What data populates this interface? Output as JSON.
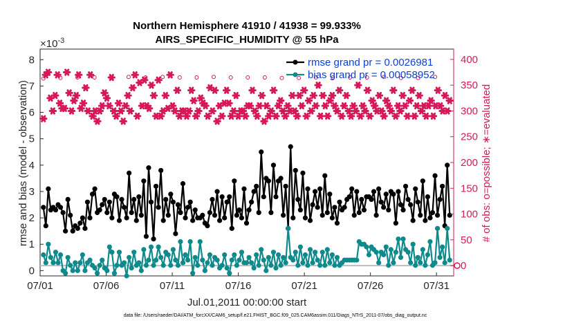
{
  "chart_data": {
    "type": "line",
    "title": "Northern Hemisphere 41910 / 41938 = 99.933%",
    "subtitle": "AIRS_SPECIFIC_HUMIDITY @ 55 hPa",
    "xlabel": "Jul.01,2011 00:00:00 start",
    "ylabel": "rmse and bias (model - observation)",
    "ylabel_right": "# of obs: o=possible; ∗=evaluated",
    "y_exponent_label": "×10",
    "y_exponent_value": "-3",
    "xlim": [
      0,
      31.3
    ],
    "ylim": [
      -0.2,
      8.4
    ],
    "ylim_right": [
      -20,
      420
    ],
    "x_ticks": [
      {
        "label": "07/01",
        "value": 0
      },
      {
        "label": "07/06",
        "value": 5
      },
      {
        "label": "07/11",
        "value": 10
      },
      {
        "label": "07/16",
        "value": 15
      },
      {
        "label": "07/21",
        "value": 20
      },
      {
        "label": "07/26",
        "value": 25
      },
      {
        "label": "07/31",
        "value": 30
      }
    ],
    "y_ticks": [
      "0",
      "1",
      "2",
      "3",
      "4",
      "5",
      "6",
      "7",
      "8"
    ],
    "y_ticks_right": [
      "0",
      "50",
      "100",
      "150",
      "200",
      "250",
      "300",
      "350",
      "400"
    ],
    "grid": false,
    "legend_position": "top-right",
    "series": [
      {
        "name": "rmse grand pr = 0.0026981",
        "color": "#000000",
        "axis": "left",
        "scale": 0.001,
        "values": [
          2.4,
          1.7,
          3.1,
          2.3,
          2.4,
          2.3,
          2.5,
          2.4,
          2.2,
          1.5,
          2.7,
          2.1,
          1.5,
          1.7,
          1.6,
          1.8,
          2.0,
          1.6,
          2.6,
          2.0,
          2.9,
          3.1,
          2.2,
          2.3,
          2.5,
          2.7,
          2.2,
          2.6,
          2.0,
          2.9,
          2.8,
          1.9,
          2.7,
          2.4,
          2.0,
          3.7,
          2.2,
          2.7,
          1.9,
          2.8,
          2.1,
          3.4,
          1.3,
          3.9,
          2.6,
          1.2,
          3.2,
          2.4,
          3.8,
          1.9,
          2.7,
          2.1,
          2.9,
          2.6,
          1.4,
          2.5,
          2.2,
          3.3,
          2.0,
          2.4,
          2.6,
          1.9,
          2.3,
          2.0,
          2.0,
          2.1,
          1.8,
          1.7,
          2.2,
          2.7,
          2.1,
          3.0,
          1.9,
          2.8,
          2.0,
          2.6,
          2.8,
          1.6,
          3.4,
          2.1,
          2.3,
          2.0,
          3.1,
          1.8,
          2.3,
          2.6,
          3.0,
          3.2,
          2.2,
          4.5,
          2.8,
          3.5,
          3.4,
          2.2,
          4.0,
          2.8,
          3.4,
          3.5,
          2.1,
          3.2,
          1.6,
          4.7,
          2.0,
          3.8,
          2.7,
          2.3,
          3.7,
          2.0,
          3.1,
          1.9,
          2.5,
          3.0,
          2.4,
          3.1,
          2.1,
          3.6,
          2.2,
          2.9,
          2.0,
          2.4,
          1.8,
          2.6,
          2.3,
          2.4,
          2.7,
          2.8,
          3.1,
          2.1,
          3.0,
          2.2,
          2.7,
          2.3,
          2.8,
          2.8,
          2.7,
          3.0,
          2.1,
          3.1,
          2.6,
          2.4,
          2.9,
          2.3,
          3.0,
          2.9,
          1.8,
          3.0,
          2.5,
          2.3,
          3.2,
          2.7,
          2.5,
          1.9,
          3.1,
          2.6,
          2.1,
          3.4,
          1.9,
          2.8,
          2.0,
          2.2,
          3.6,
          2.1,
          2.7,
          3.2,
          1.7,
          4.0,
          2.1
        ]
      },
      {
        "name": "bias grand pr = 0.00058952",
        "color": "#0e8a8c",
        "axis": "left",
        "scale": 0.001,
        "values": [
          0.6,
          0.3,
          1.0,
          0.5,
          0.3,
          0.7,
          0.3,
          0.6,
          0.0,
          -0.1,
          0.5,
          0.2,
          0.0,
          0.3,
          0.0,
          0.3,
          0.6,
          0.0,
          0.3,
          0.4,
          0.2,
          0.1,
          -0.1,
          0.2,
          0.4,
          0.1,
          0.0,
          0.9,
          0.7,
          -0.1,
          0.2,
          0.7,
          0.2,
          0.3,
          -0.2,
          0.5,
          0.1,
          0.7,
          0.2,
          0.3,
          0.0,
          0.8,
          0.2,
          0.4,
          0.9,
          0.2,
          0.4,
          0.9,
          0.5,
          0.2,
          0.7,
          0.6,
          0.2,
          0.8,
          0.4,
          0.2,
          1.1,
          0.3,
          0.6,
          0.4,
          1.1,
          -0.1,
          0.5,
          0.2,
          1.1,
          0.4,
          0.0,
          0.3,
          0.6,
          0.2,
          0.5,
          0.4,
          0.1,
          0.2,
          0.6,
          0.1,
          -0.1,
          0.4,
          0.6,
          0.2,
          0.4,
          0.7,
          0.3,
          0.3,
          0.5,
          0.3,
          0.1,
          0.6,
          0.2,
          0.8,
          0.4,
          0.0,
          0.5,
          0.2,
          0.7,
          0.1,
          0.6,
          0.2,
          0.5,
          0.3,
          1.6,
          0.5,
          0.4,
          0.7,
          0.2,
          0.9,
          0.3,
          0.6,
          0.2,
          0.8,
          0.3,
          0.7,
          0.4,
          0.2,
          0.7,
          0.2,
          0.8,
          0.3,
          0.6,
          0.2,
          0.5,
          0.2,
          0.3,
          0.4,
          0.4,
          0.4,
          0.4,
          0.4,
          0.4,
          1.1,
          1.0,
          1.0,
          0.9,
          0.6,
          0.9,
          0.8,
          0.7,
          0.3,
          0.7,
          0.6,
          0.9,
          0.2,
          0.8,
          0.3,
          0.7,
          1.2,
          0.5,
          1.2,
          0.8,
          0.7,
          0.3,
          1.0,
          0.2,
          0.5,
          0.3,
          0.8,
          0.2,
          0.6,
          1.1,
          0.2,
          0.3,
          1.6,
          0.5,
          0.9,
          0.3,
          1.6,
          0.4
        ]
      },
      {
        "name": "obs possible",
        "color": "#d6185a",
        "axis": "right",
        "values": [
          363,
          364,
          364,
          363,
          365,
          365,
          366,
          364,
          364,
          366,
          365,
          365,
          364,
          364,
          365,
          365,
          364,
          364,
          364,
          364,
          364,
          365,
          366,
          364,
          365,
          364,
          366,
          364,
          364,
          366,
          365,
          366,
          366,
          365,
          365,
          366,
          364,
          364,
          365,
          365,
          365,
          364,
          365,
          365,
          365,
          366,
          366,
          365,
          365,
          366,
          364,
          364,
          364,
          366,
          365,
          365,
          365,
          365,
          364,
          366,
          366,
          364,
          366,
          365,
          364,
          365,
          366,
          364,
          366,
          365,
          366,
          365,
          364,
          364,
          364,
          365,
          366,
          365,
          366,
          366,
          365,
          366,
          364,
          366,
          365,
          366,
          366,
          365,
          365,
          365,
          364,
          365,
          364,
          365,
          364,
          364,
          366,
          366,
          364,
          366,
          364,
          364,
          366,
          366,
          366,
          364,
          364,
          366,
          366,
          365,
          366,
          366,
          365,
          365,
          366,
          366,
          365,
          364,
          366,
          365,
          365,
          366,
          366,
          364,
          366,
          364,
          365,
          365,
          364,
          365,
          366,
          366,
          364,
          365,
          364,
          366,
          365,
          364,
          364,
          365,
          366,
          366,
          365,
          364,
          366,
          366,
          366,
          364,
          364,
          366,
          366,
          364,
          364,
          364,
          364,
          364,
          364,
          365,
          366,
          364,
          365,
          366,
          364,
          366,
          364,
          364,
          364,
          364
        ]
      },
      {
        "name": "obs evaluated",
        "color": "#d6185a",
        "axis": "right",
        "values": [
          285,
          370,
          375,
          325,
          300,
          330,
          370,
          315,
          305,
          305,
          375,
          335,
          300,
          320,
          330,
          370,
          305,
          315,
          345,
          300,
          370,
          290,
          300,
          280,
          300,
          310,
          335,
          325,
          310,
          365,
          300,
          290,
          315,
          300,
          280,
          310,
          330,
          300,
          345,
          370,
          290,
          355,
          310,
          360,
          310,
          305,
          350,
          330,
          290,
          360,
          290,
          300,
          330,
          305,
          370,
          310,
          300,
          340,
          290,
          300,
          300,
          290,
          300,
          340,
          320,
          290,
          300,
          325,
          315,
          310,
          290,
          345,
          300,
          340,
          280,
          310,
          290,
          315,
          340,
          315,
          290,
          300,
          330,
          290,
          300,
          300,
          290,
          310,
          310,
          340,
          300,
          290,
          310,
          330,
          280,
          310,
          290,
          300,
          340,
          290,
          310,
          320,
          300,
          290,
          310,
          300,
          330,
          300,
          290,
          330,
          310,
          340,
          290,
          320,
          300,
          330,
          310,
          350,
          290,
          330,
          310,
          290,
          320,
          330,
          310,
          300,
          340,
          290,
          310,
          330,
          300,
          290,
          310,
          300,
          350,
          290,
          310,
          300,
          340,
          290,
          320,
          310,
          300,
          330,
          300,
          290,
          320,
          310,
          300,
          340,
          290,
          310,
          300,
          330,
          310,
          290,
          320,
          340,
          290,
          310,
          330,
          300,
          310,
          290,
          310,
          320,
          290,
          310,
          340,
          310,
          300,
          330,
          300,
          320
        ]
      }
    ]
  },
  "footer_note": "data file: /Users/raeder/DAI/ATM_forcXX/CAM6_setup/f.e21.FHIST_BGC.f09_025.CAM6assim.011/Diags_NTrS_2011-07/obs_diag_output.nc"
}
